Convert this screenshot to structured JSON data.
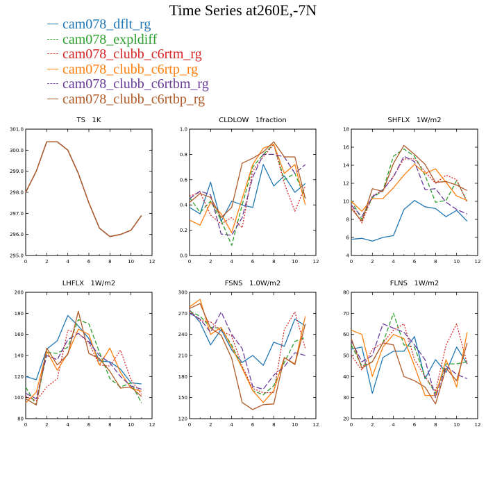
{
  "page_title": "Time Series at260E,-7N",
  "legend": [
    {
      "name": "cam078_dflt_rg",
      "color": "#1f77b4",
      "dash": ""
    },
    {
      "name": "cam078_expldiff",
      "color": "#2ca02c",
      "dash": "6,3"
    },
    {
      "name": "cam078_clubb_c6rtm_rg",
      "color": "#d62728",
      "dash": "2,2"
    },
    {
      "name": "cam078_clubb_c6rtp_rg",
      "color": "#ff7f0e",
      "dash": ""
    },
    {
      "name": "cam078_clubb_c6rtbm_rg",
      "color": "#6a3d9a",
      "dash": "8,3"
    },
    {
      "name": "cam078_clubb_c6rtbp_rg",
      "color": "#b05a28",
      "dash": ""
    }
  ],
  "chart_data": [
    {
      "type": "line",
      "title": "TS   1K",
      "xlim": [
        0,
        12
      ],
      "xticks": [
        0,
        2,
        4,
        6,
        8,
        10,
        12
      ],
      "ylim": [
        295.0,
        301.0
      ],
      "yticks": [
        "295.0",
        "296.0",
        "297.0",
        "298.0",
        "299.0",
        "300.0",
        "301.0"
      ],
      "x": [
        0,
        1,
        2,
        3,
        4,
        5,
        6,
        7,
        8,
        9,
        10,
        11
      ],
      "series": [
        {
          "name": "cam078_dflt_rg",
          "values": [
            298.0,
            299.0,
            300.4,
            300.4,
            300.0,
            298.9,
            297.5,
            296.3,
            295.9,
            296.0,
            296.2,
            296.9
          ]
        },
        {
          "name": "cam078_expldiff",
          "values": [
            298.0,
            299.0,
            300.4,
            300.4,
            300.0,
            298.9,
            297.5,
            296.3,
            295.9,
            296.0,
            296.2,
            296.9
          ]
        },
        {
          "name": "cam078_clubb_c6rtm_rg",
          "values": [
            298.0,
            299.0,
            300.4,
            300.4,
            300.0,
            298.9,
            297.5,
            296.3,
            295.9,
            296.0,
            296.2,
            296.9
          ]
        },
        {
          "name": "cam078_clubb_c6rtp_rg",
          "values": [
            298.0,
            299.0,
            300.4,
            300.4,
            300.0,
            298.9,
            297.5,
            296.3,
            295.9,
            296.0,
            296.2,
            296.9
          ]
        },
        {
          "name": "cam078_clubb_c6rtbm_rg",
          "values": [
            298.0,
            299.0,
            300.4,
            300.4,
            300.0,
            298.9,
            297.5,
            296.3,
            295.9,
            296.0,
            296.2,
            296.9
          ]
        },
        {
          "name": "cam078_clubb_c6rtbp_rg",
          "values": [
            298.0,
            299.0,
            300.4,
            300.4,
            300.0,
            298.9,
            297.5,
            296.3,
            295.9,
            296.0,
            296.2,
            296.9
          ]
        }
      ]
    },
    {
      "type": "line",
      "title": "CLDLOW   1fraction",
      "xlim": [
        0,
        12
      ],
      "xticks": [
        0,
        2,
        4,
        6,
        8,
        10,
        12
      ],
      "ylim": [
        0.0,
        1.0
      ],
      "yticks": [
        "0.0",
        "0.2",
        "0.4",
        "0.6",
        "0.8",
        "1.0"
      ],
      "x": [
        0,
        1,
        2,
        3,
        4,
        5,
        6,
        7,
        8,
        9,
        10,
        11
      ],
      "series": [
        {
          "name": "cam078_dflt_rg",
          "values": [
            0.38,
            0.33,
            0.58,
            0.27,
            0.43,
            0.4,
            0.38,
            0.72,
            0.55,
            0.63,
            0.5,
            0.57
          ]
        },
        {
          "name": "cam078_expldiff",
          "values": [
            0.46,
            0.34,
            0.43,
            0.28,
            0.08,
            0.4,
            0.7,
            0.8,
            0.88,
            0.6,
            0.65,
            0.45
          ]
        },
        {
          "name": "cam078_clubb_c6rtm_rg",
          "values": [
            0.47,
            0.5,
            0.32,
            0.25,
            0.3,
            0.22,
            0.67,
            0.78,
            0.88,
            0.57,
            0.35,
            0.55
          ]
        },
        {
          "name": "cam078_clubb_c6rtp_rg",
          "values": [
            0.28,
            0.24,
            0.42,
            0.33,
            0.18,
            0.45,
            0.72,
            0.85,
            0.88,
            0.65,
            0.72,
            0.4
          ]
        },
        {
          "name": "cam078_clubb_c6rtbm_rg",
          "values": [
            0.45,
            0.51,
            0.48,
            0.17,
            0.16,
            0.3,
            0.62,
            0.8,
            0.8,
            0.78,
            0.65,
            0.72
          ]
        },
        {
          "name": "cam078_clubb_c6rtbp_rg",
          "values": [
            0.42,
            0.49,
            0.46,
            0.3,
            0.38,
            0.73,
            0.77,
            0.82,
            0.9,
            0.78,
            0.78,
            0.45
          ]
        }
      ]
    },
    {
      "type": "line",
      "title": "SHFLX   1W/m2",
      "xlim": [
        0,
        12
      ],
      "xticks": [
        0,
        2,
        4,
        6,
        8,
        10,
        12
      ],
      "ylim": [
        4,
        18
      ],
      "yticks": [
        "4",
        "6",
        "8",
        "10",
        "12",
        "14",
        "16",
        "18"
      ],
      "x": [
        0,
        1,
        2,
        3,
        4,
        5,
        6,
        7,
        8,
        9,
        10,
        11
      ],
      "series": [
        {
          "name": "cam078_dflt_rg",
          "values": [
            5.8,
            5.9,
            5.6,
            6.0,
            6.2,
            9.1,
            10.1,
            9.4,
            9.2,
            8.3,
            9.0,
            7.8
          ]
        },
        {
          "name": "cam078_expldiff",
          "values": [
            10.1,
            8.0,
            10.4,
            11.2,
            15.0,
            15.8,
            15.0,
            12.9,
            9.9,
            10.1,
            12.3,
            10.0
          ]
        },
        {
          "name": "cam078_clubb_c6rtm_rg",
          "values": [
            9.5,
            7.6,
            10.6,
            11.2,
            12.8,
            14.7,
            14.7,
            13.3,
            12.0,
            12.9,
            12.4,
            9.9
          ]
        },
        {
          "name": "cam078_clubb_c6rtp_rg",
          "values": [
            10.0,
            8.9,
            10.3,
            10.3,
            11.5,
            12.9,
            14.1,
            13.1,
            13.6,
            12.1,
            10.6,
            10.1
          ]
        },
        {
          "name": "cam078_clubb_c6rtbm_rg",
          "values": [
            9.6,
            8.3,
            10.5,
            11.3,
            12.7,
            15.0,
            14.4,
            11.3,
            11.4,
            9.9,
            9.1,
            8.6
          ]
        },
        {
          "name": "cam078_clubb_c6rtbp_rg",
          "values": [
            9.2,
            7.8,
            11.4,
            11.1,
            14.2,
            16.2,
            15.2,
            14.1,
            12.1,
            12.2,
            11.8,
            11.2
          ]
        }
      ]
    },
    {
      "type": "line",
      "title": "LHFLX   1W/m2",
      "xlim": [
        0,
        12
      ],
      "xticks": [
        0,
        2,
        4,
        6,
        8,
        10,
        12
      ],
      "ylim": [
        80,
        200
      ],
      "yticks": [
        "80",
        "100",
        "120",
        "140",
        "160",
        "180",
        "200"
      ],
      "x": [
        0,
        1,
        2,
        3,
        4,
        5,
        6,
        7,
        8,
        9,
        10,
        11
      ],
      "series": [
        {
          "name": "cam078_dflt_rg",
          "values": [
            120,
            117,
            146,
            154,
            178,
            168,
            156,
            135,
            134,
            127,
            114,
            113
          ]
        },
        {
          "name": "cam078_expldiff",
          "values": [
            110,
            93,
            143,
            142,
            148,
            174,
            170,
            143,
            118,
            110,
            114,
            95
          ]
        },
        {
          "name": "cam078_clubb_c6rtm_rg",
          "values": [
            101,
            97,
            110,
            118,
            164,
            161,
            152,
            131,
            130,
            145,
            117,
            103
          ]
        },
        {
          "name": "cam078_clubb_c6rtp_rg",
          "values": [
            95,
            105,
            144,
            126,
            142,
            165,
            160,
            131,
            147,
            124,
            109,
            106
          ]
        },
        {
          "name": "cam078_clubb_c6rtbm_rg",
          "values": [
            104,
            99,
            140,
            136,
            155,
            161,
            153,
            140,
            133,
            120,
            111,
            108
          ]
        },
        {
          "name": "cam078_clubb_c6rtbp_rg",
          "values": [
            99,
            93,
            147,
            131,
            141,
            182,
            142,
            137,
            125,
            109,
            110,
            101
          ]
        }
      ]
    },
    {
      "type": "line",
      "title": "FSNS   1.0W/m2",
      "xlim": [
        0,
        12
      ],
      "xticks": [
        0,
        2,
        4,
        6,
        8,
        10,
        12
      ],
      "ylim": [
        120,
        300
      ],
      "yticks": [
        "120",
        "150",
        "180",
        "210",
        "240",
        "270",
        "300"
      ],
      "x": [
        0,
        1,
        2,
        3,
        4,
        5,
        6,
        7,
        8,
        9,
        10,
        11
      ],
      "series": [
        {
          "name": "cam078_dflt_rg",
          "values": [
            275,
            257,
            225,
            247,
            218,
            200,
            210,
            196,
            229,
            223,
            262,
            252
          ]
        },
        {
          "name": "cam078_expldiff",
          "values": [
            273,
            266,
            250,
            249,
            225,
            193,
            160,
            154,
            167,
            200,
            230,
            236
          ]
        },
        {
          "name": "cam078_clubb_c6rtm_rg",
          "values": [
            274,
            260,
            258,
            245,
            238,
            195,
            163,
            157,
            157,
            247,
            272,
            220
          ]
        },
        {
          "name": "cam078_clubb_c6rtp_rg",
          "values": [
            279,
            290,
            240,
            250,
            222,
            192,
            160,
            143,
            160,
            207,
            198,
            266
          ]
        },
        {
          "name": "cam078_clubb_c6rtbm_rg",
          "values": [
            270,
            262,
            243,
            272,
            240,
            220,
            166,
            162,
            182,
            194,
            214,
            210
          ]
        },
        {
          "name": "cam078_clubb_c6rtbp_rg",
          "values": [
            277,
            284,
            249,
            239,
            206,
            143,
            133,
            140,
            141,
            207,
            197,
            255
          ]
        }
      ]
    },
    {
      "type": "line",
      "title": "FLNS   1W/m2",
      "xlim": [
        0,
        12
      ],
      "xticks": [
        0,
        2,
        4,
        6,
        8,
        10,
        12
      ],
      "ylim": [
        20,
        80
      ],
      "yticks": [
        "20",
        "30",
        "40",
        "50",
        "60",
        "70",
        "80"
      ],
      "x": [
        0,
        1,
        2,
        3,
        4,
        5,
        6,
        7,
        8,
        9,
        10,
        11
      ],
      "series": [
        {
          "name": "cam078_dflt_rg",
          "values": [
            53,
            54,
            32,
            49,
            52,
            52,
            59,
            39,
            48,
            42,
            54,
            46
          ]
        },
        {
          "name": "cam078_expldiff",
          "values": [
            55,
            45,
            47,
            56,
            70,
            55,
            54,
            40,
            32,
            46,
            46,
            47
          ]
        },
        {
          "name": "cam078_clubb_c6rtm_rg",
          "values": [
            50,
            43,
            53,
            56,
            62,
            65,
            48,
            40,
            33,
            55,
            65,
            46
          ]
        },
        {
          "name": "cam078_clubb_c6rtp_rg",
          "values": [
            62,
            60,
            40,
            54,
            60,
            58,
            45,
            31,
            31,
            48,
            35,
            61
          ]
        },
        {
          "name": "cam078_clubb_c6rtbm_rg",
          "values": [
            57,
            47,
            50,
            65,
            63,
            61,
            55,
            48,
            30,
            45,
            41,
            39
          ]
        },
        {
          "name": "cam078_clubb_c6rtbp_rg",
          "values": [
            58,
            44,
            47,
            56,
            55,
            40,
            38,
            35,
            27,
            44,
            38,
            56
          ]
        }
      ]
    }
  ]
}
